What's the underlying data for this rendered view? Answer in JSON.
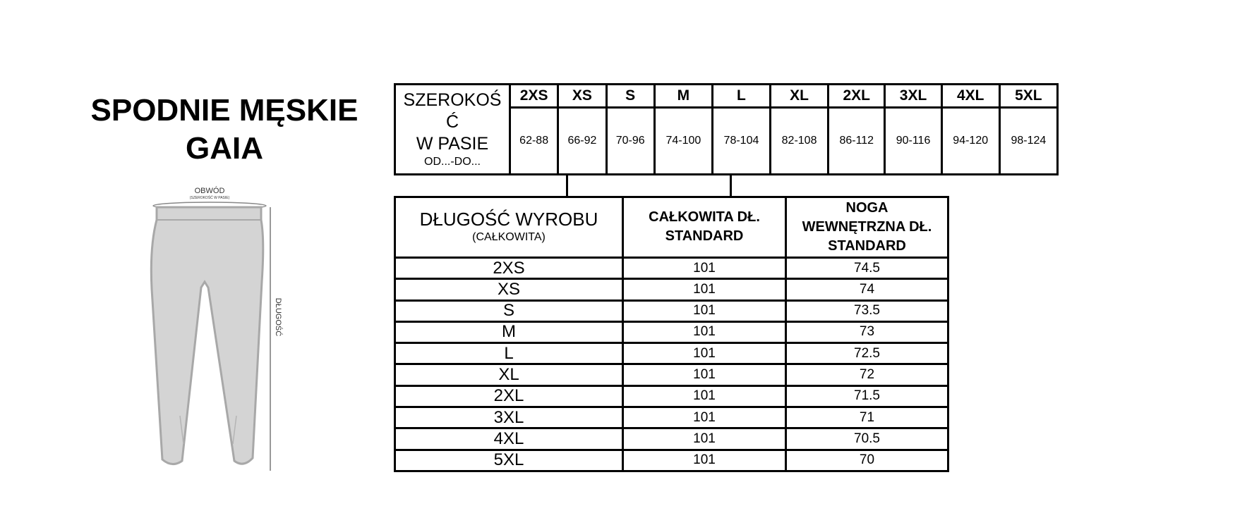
{
  "title": {
    "line1": "SPODNIE MĘSKIE",
    "line2": "GAIA"
  },
  "diagram": {
    "waist_label": "OBWÓD",
    "waist_sublabel": "(SZEROKOŚĆ W PASIE)",
    "length_label": "DŁUGOŚĆ",
    "fill_color": "#d4d4d4",
    "outline_color": "#a8a8a8"
  },
  "waist_table": {
    "label_line1": "SZEROKOŚ",
    "label_line2": "Ć",
    "label_line3": "W PASIE",
    "label_sub": "OD...-DO...",
    "sizes": [
      "2XS",
      "XS",
      "S",
      "M",
      "L",
      "XL",
      "2XL",
      "3XL",
      "4XL",
      "5XL"
    ],
    "values": [
      "62-88",
      "66-92",
      "70-96",
      "74-100",
      "78-104",
      "82-108",
      "86-112",
      "90-116",
      "94-120",
      "98-124"
    ]
  },
  "length_table": {
    "header_col1": "DŁUGOŚĆ WYROBU",
    "header_col1_sub": "(CAŁKOWITA)",
    "header_col2_line1": "CAŁKOWITA DŁ.",
    "header_col2_line2": "STANDARD",
    "header_col3_line1": "NOGA",
    "header_col3_line2": "WEWNĘTRZNA DŁ.",
    "header_col3_line3": "STANDARD",
    "rows": [
      {
        "size": "2XS",
        "total": "101",
        "inseam": "74.5"
      },
      {
        "size": "XS",
        "total": "101",
        "inseam": "74"
      },
      {
        "size": "S",
        "total": "101",
        "inseam": "73.5"
      },
      {
        "size": "M",
        "total": "101",
        "inseam": "73"
      },
      {
        "size": "L",
        "total": "101",
        "inseam": "72.5"
      },
      {
        "size": "XL",
        "total": "101",
        "inseam": "72"
      },
      {
        "size": "2XL",
        "total": "101",
        "inseam": "71.5"
      },
      {
        "size": "3XL",
        "total": "101",
        "inseam": "71"
      },
      {
        "size": "4XL",
        "total": "101",
        "inseam": "70.5"
      },
      {
        "size": "5XL",
        "total": "101",
        "inseam": "70"
      }
    ]
  }
}
